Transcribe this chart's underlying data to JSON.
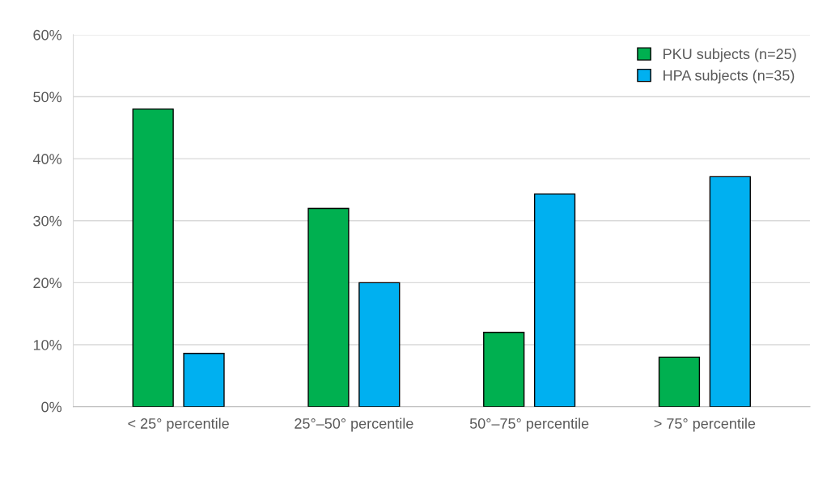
{
  "chart_data": {
    "type": "bar",
    "categories": [
      "< 25° percentile",
      "25°–50° percentile",
      "50°–75° percentile",
      "> 75° percentile"
    ],
    "series": [
      {
        "name": "PKU subjects (n=25)",
        "color": "#00b050",
        "values": [
          48,
          32,
          12,
          8
        ]
      },
      {
        "name": "HPA subjects (n=35)",
        "color": "#00b0f0",
        "values": [
          8.6,
          20,
          34.3,
          37.1
        ]
      }
    ],
    "ylim": [
      0,
      60
    ],
    "yticks": [
      {
        "value": 0,
        "label": "0%"
      },
      {
        "value": 10,
        "label": "10%"
      },
      {
        "value": 20,
        "label": "20%"
      },
      {
        "value": 30,
        "label": "30%"
      },
      {
        "value": 40,
        "label": "40%"
      },
      {
        "value": 50,
        "label": "50%"
      },
      {
        "value": 60,
        "label": "60%"
      }
    ],
    "grid": "y",
    "legend": "top right"
  }
}
